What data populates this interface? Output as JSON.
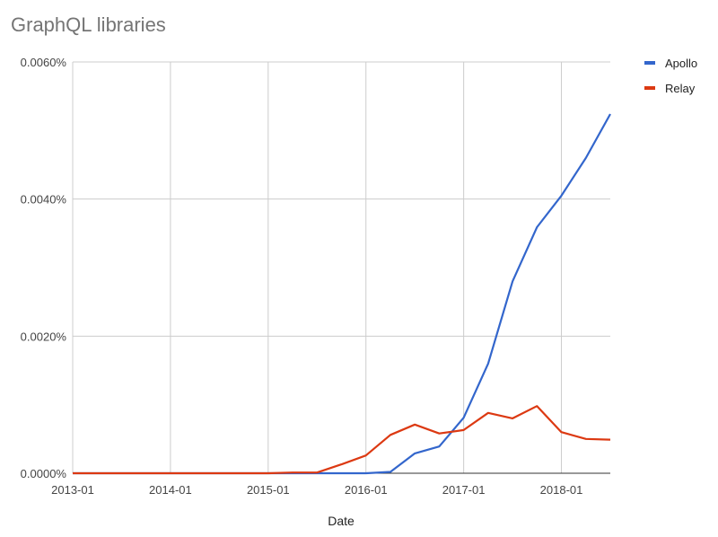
{
  "chart_data": {
    "type": "line",
    "title": "GraphQL libraries",
    "xlabel": "Date",
    "ylabel": "",
    "x": [
      "2013-01",
      "2013-04",
      "2013-07",
      "2013-10",
      "2014-01",
      "2014-04",
      "2014-07",
      "2014-10",
      "2015-01",
      "2015-04",
      "2015-07",
      "2015-10",
      "2016-01",
      "2016-04",
      "2016-07",
      "2016-10",
      "2017-01",
      "2017-04",
      "2017-07",
      "2017-10",
      "2018-01",
      "2018-04",
      "2018-07"
    ],
    "xticks": [
      "2013-01",
      "2014-01",
      "2015-01",
      "2016-01",
      "2017-01",
      "2018-01"
    ],
    "yticks": [
      "0.0000%",
      "0.0020%",
      "0.0040%",
      "0.0060%"
    ],
    "ylim": [
      0,
      0.006
    ],
    "grid": true,
    "legend": "right",
    "series": [
      {
        "name": "Apollo",
        "color": "#3366cc",
        "values": [
          0,
          0,
          0,
          0,
          0,
          0,
          0,
          0,
          0,
          0,
          0,
          0,
          0,
          2e-05,
          0.00029,
          0.00039,
          0.00081,
          0.0016,
          0.0028,
          0.00359,
          0.00405,
          0.0046,
          0.00524
        ]
      },
      {
        "name": "Relay",
        "color": "#dc3912",
        "values": [
          0,
          0,
          0,
          0,
          0,
          0,
          0,
          0,
          0,
          1e-05,
          1e-05,
          0.00013,
          0.00026,
          0.00056,
          0.00071,
          0.00058,
          0.00063,
          0.00088,
          0.0008,
          0.00098,
          0.0006,
          0.0005,
          0.00049
        ]
      }
    ]
  }
}
